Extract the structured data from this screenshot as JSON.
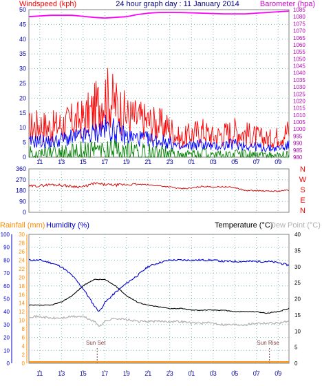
{
  "header": {
    "windspeed_label": "Windspeed (kph)",
    "title": "24 hour graph day : 11 January 2014",
    "barometer_label": "Barometer (hpa)"
  },
  "panel3_header": {
    "rainfall_label": "Rainfall (mm)",
    "humidity_label": "Humidity (%)",
    "temperature_label": "Temperature (°C)",
    "dewpoint_label": "Dew Point (°C)"
  },
  "colors": {
    "windspeed": "#ff0000",
    "wind_avg": "#0000ff",
    "wind_low": "#008000",
    "barometer": "#ff00ff",
    "direction": "#cc0000",
    "humidity": "#0000cc",
    "temperature": "#000000",
    "dewpoint": "#b0b0b0",
    "rainfall": "#ff8c00",
    "grid": "#7fb8b8",
    "tick_text": "#0000aa",
    "right_axis": "#b000b0",
    "compass": "#ff0000"
  },
  "chart_data": [
    {
      "type": "line",
      "panel": "wind-barometer",
      "x_tick_labels": [
        "11",
        "13",
        "15",
        "17",
        "19",
        "21",
        "23",
        "01",
        "03",
        "05",
        "07",
        "09"
      ],
      "x_start_hour": 10,
      "x_span_hours": 24,
      "left_axis": {
        "label": "Windspeed (kph)",
        "ylim": [
          0,
          50
        ],
        "ticks": [
          0,
          5,
          10,
          15,
          20,
          25,
          30,
          35,
          40,
          45,
          50
        ]
      },
      "right_axis": {
        "label": "Barometer (hpa)",
        "ylim": [
          980,
          1085
        ],
        "ticks": [
          980,
          985,
          990,
          995,
          1000,
          1005,
          1010,
          1015,
          1020,
          1025,
          1030,
          1035,
          1040,
          1045,
          1050,
          1055,
          1060,
          1065,
          1070,
          1075,
          1080,
          1085
        ]
      },
      "series": [
        {
          "color": "#ff0000",
          "x": [
            10,
            11,
            12,
            13,
            14,
            15,
            16,
            17,
            18,
            19,
            20,
            21,
            22,
            23,
            24,
            25,
            26,
            27,
            28,
            29,
            30,
            31,
            32,
            33,
            34
          ],
          "values": [
            10,
            11,
            10,
            11,
            12,
            13,
            16,
            21,
            18,
            14,
            13,
            12,
            11,
            10,
            6,
            8,
            9,
            7,
            8,
            9,
            8,
            7,
            6,
            7,
            9
          ]
        },
        {
          "color": "#0000ff",
          "x": [
            10,
            11,
            12,
            13,
            14,
            15,
            16,
            17,
            18,
            19,
            20,
            21,
            22,
            23,
            24,
            25,
            26,
            27,
            28,
            29,
            30,
            31,
            32,
            33,
            34
          ],
          "values": [
            5,
            5.5,
            5,
            6,
            6.5,
            7,
            8,
            10,
            9,
            7,
            6.5,
            6,
            5.5,
            5,
            3,
            4,
            4.5,
            3.5,
            4,
            4.5,
            4,
            3.5,
            3,
            3,
            4
          ]
        },
        {
          "color": "#008000",
          "x": [
            10,
            11,
            12,
            13,
            14,
            15,
            16,
            17,
            18,
            19,
            20,
            21,
            22,
            23,
            24,
            25,
            26,
            27,
            28,
            29,
            30,
            31,
            32,
            33,
            34
          ],
          "values": [
            2,
            2,
            2,
            2.5,
            2.5,
            3,
            3,
            4,
            3.5,
            3,
            2.5,
            2.5,
            2,
            2,
            1,
            1.5,
            2,
            1,
            1.5,
            1.5,
            1.5,
            1,
            1,
            1,
            1.5
          ]
        },
        {
          "color": "#ff00ff",
          "axis": "right",
          "x": [
            10,
            12,
            14,
            16,
            17,
            18,
            19,
            20,
            21,
            22,
            24,
            26,
            28,
            30,
            32,
            34
          ],
          "values": [
            1080,
            1081,
            1081,
            1079.5,
            1079,
            1079.5,
            1080,
            1081.5,
            1082.5,
            1083,
            1083,
            1082.5,
            1082,
            1082,
            1083,
            1084
          ]
        }
      ]
    },
    {
      "type": "line",
      "panel": "wind-direction",
      "x_start_hour": 10,
      "x_span_hours": 24,
      "ylim": [
        0,
        360
      ],
      "ticks": [
        0,
        90,
        180,
        270,
        360
      ],
      "compass_labels": [
        "N",
        "W",
        "S",
        "E",
        "N"
      ],
      "series": [
        {
          "color": "#cc0000",
          "x": [
            10,
            11,
            12,
            13,
            14,
            15,
            16,
            17,
            18,
            19,
            20,
            21,
            22,
            23,
            24,
            25,
            26,
            27,
            28,
            29,
            30,
            31,
            32,
            33,
            34
          ],
          "values": [
            215,
            220,
            230,
            225,
            215,
            210,
            240,
            230,
            225,
            230,
            232,
            228,
            220,
            210,
            195,
            200,
            215,
            210,
            212,
            205,
            180,
            180,
            175,
            175,
            185
          ]
        }
      ]
    },
    {
      "type": "line",
      "panel": "humidity-temperature",
      "x_tick_labels": [
        "11",
        "13",
        "15",
        "17",
        "19",
        "21",
        "23",
        "01",
        "03",
        "05",
        "07",
        "09"
      ],
      "x_start_hour": 10,
      "x_span_hours": 24,
      "humidity_axis": {
        "label": "Humidity (%)",
        "ylim": [
          0,
          100
        ],
        "ticks": [
          0,
          10,
          20,
          30,
          40,
          50,
          60,
          70,
          80,
          90,
          100
        ]
      },
      "rainfall_axis": {
        "label": "Rainfall (mm)",
        "ylim": [
          0,
          30
        ],
        "ticks": [
          0,
          2,
          4,
          6,
          8,
          10,
          12,
          14,
          16,
          18,
          20,
          22,
          24,
          26,
          28,
          30
        ]
      },
      "temperature_axis": {
        "label": "Temperature (°C)",
        "ylim": [
          0,
          40
        ],
        "ticks": [
          0,
          5,
          10,
          15,
          20,
          25,
          30,
          35,
          40
        ]
      },
      "annotations": [
        {
          "text": "Sun Set",
          "hour": 16.3
        },
        {
          "text": "Sun Rise",
          "hour": 8.2
        }
      ],
      "series": [
        {
          "color": "#0000cc",
          "axis": "humidity",
          "x": [
            10,
            11,
            12,
            13,
            14,
            15,
            16,
            16.5,
            17,
            18,
            19,
            20,
            21,
            22,
            23,
            24,
            25,
            26,
            27,
            28,
            29,
            30,
            31,
            32,
            33,
            34
          ],
          "values": [
            80,
            80,
            78,
            75,
            68,
            58,
            45,
            40,
            47,
            55,
            62,
            68,
            75,
            78,
            80,
            80,
            80,
            80,
            80,
            79,
            79,
            79,
            79,
            79,
            78,
            76
          ]
        },
        {
          "color": "#000000",
          "axis": "temperature",
          "x": [
            10,
            11,
            12,
            13,
            14,
            15,
            16,
            17,
            18,
            19,
            20,
            21,
            22,
            23,
            24,
            25,
            26,
            27,
            28,
            29,
            30,
            31,
            32,
            33,
            34
          ],
          "values": [
            18,
            18,
            18,
            19,
            21,
            24,
            26,
            26,
            24,
            21,
            19,
            18,
            17.5,
            17,
            17,
            16.5,
            16.5,
            16.5,
            16.5,
            16,
            16,
            16,
            15.5,
            16,
            17
          ]
        },
        {
          "color": "#b0b0b0",
          "axis": "temperature",
          "x": [
            10,
            11,
            12,
            13,
            14,
            15,
            16,
            16.5,
            17,
            18,
            19,
            20,
            21,
            22,
            23,
            24,
            25,
            26,
            27,
            28,
            29,
            30,
            31,
            32,
            33,
            34
          ],
          "values": [
            14.5,
            14.5,
            14,
            14,
            14.5,
            14.5,
            13,
            11.5,
            13,
            14,
            13.5,
            13,
            13,
            13,
            13,
            13,
            12.5,
            12.5,
            12.5,
            12,
            12,
            12,
            12.5,
            12.5,
            12.5,
            13
          ]
        },
        {
          "color": "#ff8c00",
          "axis": "rainfall",
          "x": [
            10,
            34
          ],
          "values": [
            0.3,
            0.3
          ]
        }
      ]
    }
  ]
}
